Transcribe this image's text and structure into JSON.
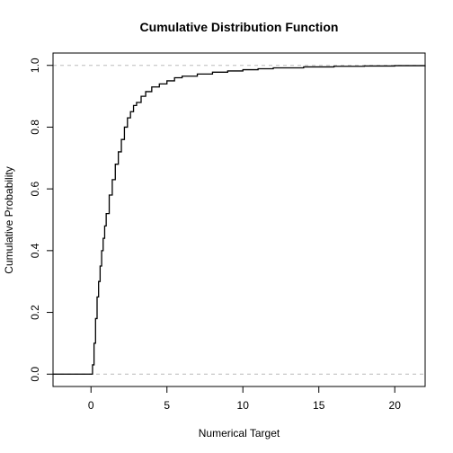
{
  "chart_data": {
    "type": "line",
    "title": "Cumulative Distribution Function",
    "xlabel": "Numerical Target",
    "ylabel": "Cumulative Probability",
    "xlim": [
      -2.5,
      22.0
    ],
    "ylim": [
      -0.04,
      1.04
    ],
    "x_ticks": [
      0,
      5,
      10,
      15,
      20
    ],
    "x_tick_labels": [
      "0",
      "5",
      "10",
      "15",
      "20"
    ],
    "y_ticks": [
      0.0,
      0.2,
      0.4,
      0.6,
      0.8,
      1.0
    ],
    "y_tick_labels": [
      "0.0",
      "0.2",
      "0.4",
      "0.6",
      "0.8",
      "1.0"
    ],
    "reference_lines": [
      0.0,
      1.0
    ],
    "grid": false,
    "series": [
      {
        "style": "step",
        "color": "#000000",
        "x": [
          -2.5,
          0.05,
          0.1,
          0.2,
          0.3,
          0.4,
          0.5,
          0.6,
          0.7,
          0.8,
          0.9,
          1.0,
          1.2,
          1.4,
          1.6,
          1.8,
          2.0,
          2.2,
          2.4,
          2.6,
          2.8,
          3.0,
          3.3,
          3.6,
          4.0,
          4.5,
          5.0,
          5.5,
          6.0,
          7.0,
          8.0,
          9.0,
          10.0,
          11.0,
          12.0,
          14.0,
          16.0,
          18.0,
          20.0,
          22.0
        ],
        "y": [
          0.0,
          0.0,
          0.03,
          0.1,
          0.18,
          0.25,
          0.3,
          0.35,
          0.4,
          0.44,
          0.48,
          0.52,
          0.58,
          0.63,
          0.68,
          0.72,
          0.76,
          0.8,
          0.83,
          0.85,
          0.87,
          0.88,
          0.9,
          0.915,
          0.93,
          0.94,
          0.95,
          0.96,
          0.965,
          0.972,
          0.978,
          0.982,
          0.986,
          0.989,
          0.992,
          0.995,
          0.997,
          0.998,
          0.999,
          1.0
        ]
      }
    ]
  }
}
